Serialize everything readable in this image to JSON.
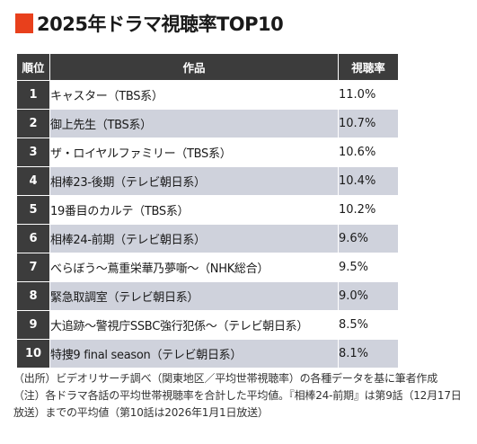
{
  "title": "2025年ドラマ視聴率TOP10",
  "colors": {
    "accent": "#e8401c",
    "header_bg": "#3c3c3c",
    "stripe": "#cfd2dc"
  },
  "table": {
    "headers": [
      "順位",
      "作品",
      "視聴率"
    ],
    "rows": [
      {
        "rank": "1",
        "title": "キャスター（TBS系）",
        "rating": "11.0%"
      },
      {
        "rank": "2",
        "title": "御上先生（TBS系）",
        "rating": "10.7%"
      },
      {
        "rank": "3",
        "title": "ザ・ロイヤルファミリー（TBS系）",
        "rating": "10.6%"
      },
      {
        "rank": "4",
        "title": "相棒23-後期（テレビ朝日系）",
        "rating": "10.4%"
      },
      {
        "rank": "5",
        "title": "19番目のカルテ（TBS系）",
        "rating": "10.2%"
      },
      {
        "rank": "6",
        "title": "相棒24-前期（テレビ朝日系）",
        "rating": "9.6%"
      },
      {
        "rank": "7",
        "title": "べらぼう～蔦重栄華乃夢噺～（NHK総合）",
        "rating": "9.5%"
      },
      {
        "rank": "8",
        "title": "緊急取調室（テレビ朝日系）",
        "rating": "9.0%"
      },
      {
        "rank": "9",
        "title": "大追跡～警視庁SSBC強行犯係～（テレビ朝日系）",
        "rating": "8.5%"
      },
      {
        "rank": "10",
        "title": "特捜9 final season（テレビ朝日系）",
        "rating": "8.1%"
      }
    ]
  },
  "notes": {
    "source": "（出所）ビデオリサーチ調べ（関東地区／平均世帯視聴率）の各種データを基に筆者作成",
    "note": "（注）各ドラマ各話の平均世帯視聴率を合計した平均値。『相棒24-前期』は第9話（12月17日放送）までの平均値（第10話は2026年1月1日放送）"
  }
}
